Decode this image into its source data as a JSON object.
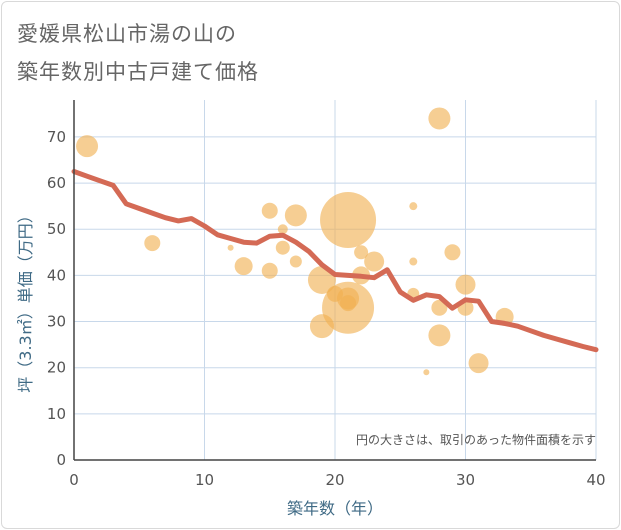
{
  "chart_data": {
    "type": "scatter",
    "title_line1": "愛媛県松山市湯の山の",
    "title_line2": "築年数別中古戸建て価格",
    "xlabel": "築年数（年）",
    "ylabel": "坪（3.3㎡）単価（万円）",
    "note": "円の大きさは、取引のあった物件面積を示す",
    "xlim": [
      0,
      40
    ],
    "ylim": [
      0,
      78
    ],
    "x_ticks": [
      0,
      10,
      20,
      30,
      40
    ],
    "y_ticks": [
      0,
      10,
      20,
      30,
      40,
      50,
      60,
      70
    ],
    "bubble_color": "#f0b050",
    "line_color": "#d46a55",
    "bubbles": [
      {
        "x": 1,
        "y": 68,
        "r": 11
      },
      {
        "x": 6,
        "y": 47,
        "r": 8
      },
      {
        "x": 12,
        "y": 46,
        "r": 3
      },
      {
        "x": 13,
        "y": 42,
        "r": 9
      },
      {
        "x": 15,
        "y": 54,
        "r": 8
      },
      {
        "x": 15,
        "y": 41,
        "r": 8
      },
      {
        "x": 16,
        "y": 50,
        "r": 5
      },
      {
        "x": 16,
        "y": 46,
        "r": 7
      },
      {
        "x": 17,
        "y": 53,
        "r": 11
      },
      {
        "x": 17,
        "y": 43,
        "r": 6
      },
      {
        "x": 19,
        "y": 39,
        "r": 14
      },
      {
        "x": 19,
        "y": 29,
        "r": 12
      },
      {
        "x": 20,
        "y": 36,
        "r": 8
      },
      {
        "x": 21,
        "y": 52,
        "r": 28
      },
      {
        "x": 21,
        "y": 33,
        "r": 26
      },
      {
        "x": 21,
        "y": 35,
        "r": 11
      },
      {
        "x": 21,
        "y": 34,
        "r": 8
      },
      {
        "x": 22,
        "y": 45,
        "r": 7
      },
      {
        "x": 22,
        "y": 40,
        "r": 9
      },
      {
        "x": 23,
        "y": 43,
        "r": 10
      },
      {
        "x": 26,
        "y": 55,
        "r": 4
      },
      {
        "x": 26,
        "y": 43,
        "r": 4
      },
      {
        "x": 26,
        "y": 36,
        "r": 6
      },
      {
        "x": 27,
        "y": 19,
        "r": 3
      },
      {
        "x": 28,
        "y": 74,
        "r": 11
      },
      {
        "x": 28,
        "y": 33,
        "r": 8
      },
      {
        "x": 28,
        "y": 27,
        "r": 11
      },
      {
        "x": 29,
        "y": 45,
        "r": 8
      },
      {
        "x": 30,
        "y": 38,
        "r": 10
      },
      {
        "x": 30,
        "y": 33,
        "r": 8
      },
      {
        "x": 31,
        "y": 21,
        "r": 10
      },
      {
        "x": 33,
        "y": 31,
        "r": 9
      }
    ],
    "trend_line": [
      [
        0,
        62.5
      ],
      [
        1,
        61.5
      ],
      [
        2,
        60.5
      ],
      [
        3,
        59.5
      ],
      [
        4,
        55.5
      ],
      [
        5,
        54.5
      ],
      [
        6,
        53.5
      ],
      [
        7,
        52.5
      ],
      [
        8,
        51.8
      ],
      [
        9,
        52.3
      ],
      [
        10,
        50.7
      ],
      [
        11,
        48.8
      ],
      [
        12,
        48.0
      ],
      [
        13,
        47.2
      ],
      [
        14,
        47.0
      ],
      [
        15,
        48.5
      ],
      [
        16,
        48.7
      ],
      [
        17,
        47.2
      ],
      [
        18,
        45.2
      ],
      [
        19,
        42.3
      ],
      [
        20,
        40.2
      ],
      [
        21,
        40.0
      ],
      [
        22,
        39.8
      ],
      [
        23,
        39.5
      ],
      [
        24,
        41.2
      ],
      [
        25,
        36.4
      ],
      [
        26,
        34.6
      ],
      [
        27,
        35.8
      ],
      [
        28,
        35.4
      ],
      [
        29,
        32.9
      ],
      [
        30,
        34.7
      ],
      [
        31,
        34.4
      ],
      [
        32,
        30.0
      ],
      [
        33,
        29.6
      ],
      [
        34,
        29.0
      ],
      [
        35,
        28.0
      ],
      [
        36,
        27.0
      ],
      [
        37,
        26.2
      ],
      [
        38,
        25.4
      ],
      [
        39,
        24.6
      ],
      [
        40,
        23.9
      ]
    ]
  }
}
